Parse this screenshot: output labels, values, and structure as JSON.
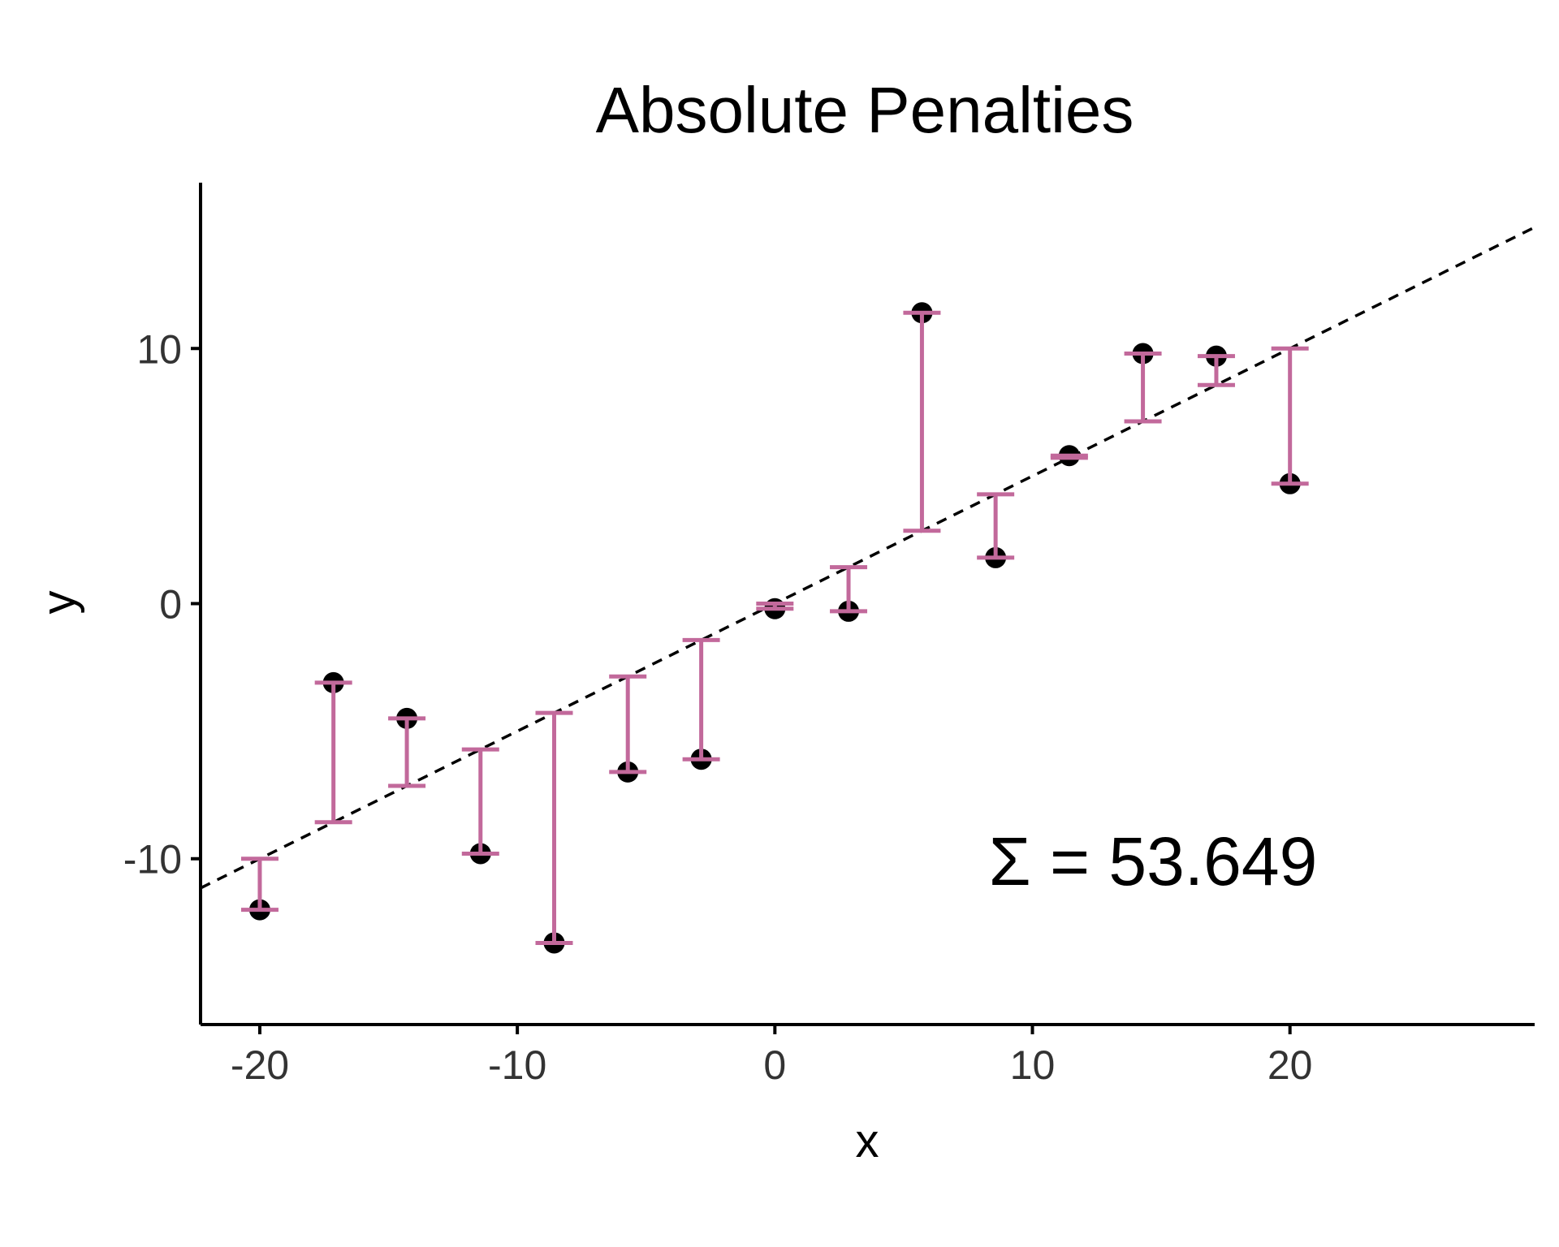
{
  "chart_data": {
    "type": "scatter",
    "title": "Absolute Penalties",
    "xlabel": "x",
    "ylabel": "y",
    "xlim": [
      -22.3,
      29.5
    ],
    "ylim": [
      -16.5,
      16.5
    ],
    "x_ticks": [
      -20,
      -10,
      0,
      10,
      20
    ],
    "y_ticks": [
      -10,
      0,
      10
    ],
    "x_tick_labels": [
      "-20",
      "-10",
      "0",
      "10",
      "20"
    ],
    "y_tick_labels": [
      "-10",
      "0",
      "10"
    ],
    "grid": false,
    "legend": "none",
    "fitted_line": {
      "slope": 0.5,
      "intercept": 0,
      "style": "dashed",
      "color": "#000000"
    },
    "points": {
      "x": [
        -20,
        -17.14,
        -14.29,
        -11.43,
        -8.57,
        -5.71,
        -2.86,
        0,
        2.86,
        5.71,
        8.57,
        11.43,
        14.29,
        17.14,
        20
      ],
      "y": [
        -12,
        -3.1,
        -4.5,
        -9.8,
        -13.3,
        -6.6,
        -6.1,
        -0.2,
        -0.3,
        11.4,
        1.8,
        5.8,
        9.8,
        9.7,
        4.7
      ],
      "color": "#000000"
    },
    "residual_color": "#c2699b",
    "annotation": "Σ = 53.649"
  }
}
